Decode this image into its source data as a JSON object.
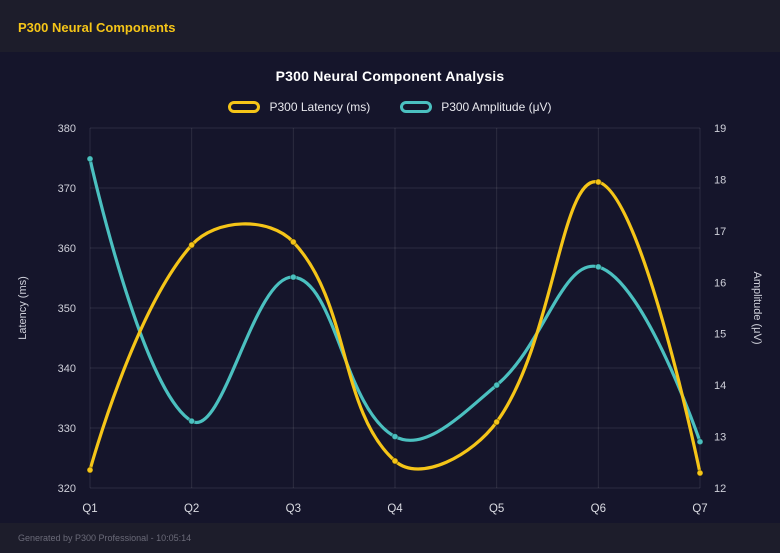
{
  "page": {
    "header_title": "P300 Neural Components",
    "footer": "Generated by P300 Professional - 10:05:14"
  },
  "colors": {
    "header_accent": "#f5c518",
    "background": "#1d1d2b",
    "panel": "#15152b",
    "grid": "rgba(255,255,255,0.10)",
    "tick_text": "#cfd0da",
    "category_text": "#dadbe2"
  },
  "chart_data": {
    "type": "line",
    "title": "P300 Neural Component Analysis",
    "categories": [
      "Q1",
      "Q2",
      "Q3",
      "Q4",
      "Q5",
      "Q6",
      "Q7"
    ],
    "series": [
      {
        "name": "P300 Latency (ms)",
        "axis": "left",
        "color": "#f5c518",
        "values": [
          323,
          360.5,
          361,
          324.5,
          331,
          371,
          322.5
        ]
      },
      {
        "name": "P300 Amplitude (μV)",
        "axis": "right",
        "color": "#4bc0c0",
        "values": [
          18.4,
          13.3,
          16.1,
          13.0,
          14.0,
          16.3,
          12.9
        ]
      }
    ],
    "left_axis": {
      "label": "Latency (ms)",
      "min": 320,
      "max": 380,
      "step": 10
    },
    "right_axis": {
      "label": "Amplitude (μV)",
      "min": 12,
      "max": 19,
      "step": 1
    },
    "grid": true,
    "legend_position": "top",
    "line_tension": 0.4
  }
}
